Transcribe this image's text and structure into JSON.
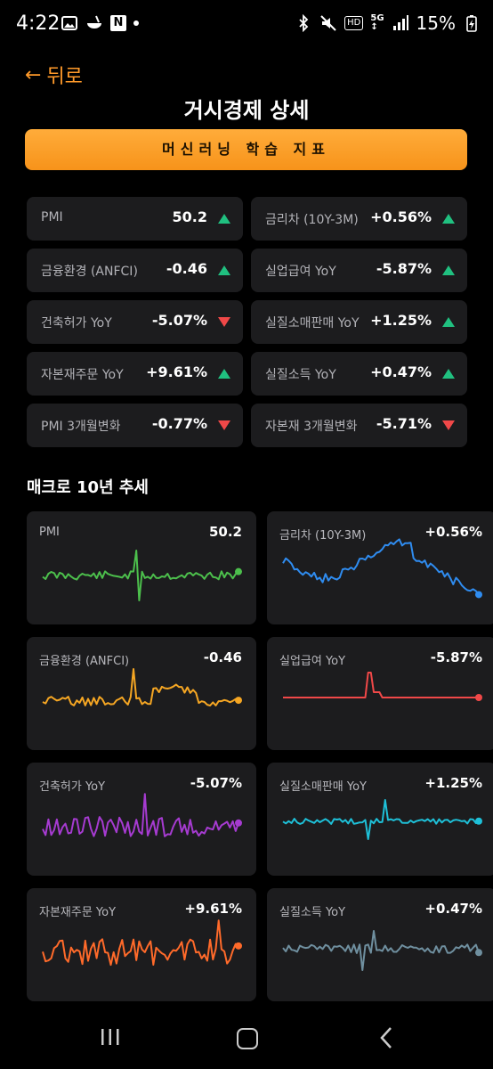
{
  "status_bar": {
    "time": "4:22",
    "battery": "15%"
  },
  "header": {
    "back_label": "뒤로",
    "title": "거시경제 상세",
    "ml_button": "머신러닝 학습 지표"
  },
  "metrics": [
    {
      "label": "PMI",
      "value": "50.2",
      "dir": "up"
    },
    {
      "label": "금리차 (10Y-3M)",
      "value": "+0.56%",
      "dir": "up"
    },
    {
      "label": "금융환경 (ANFCI)",
      "value": "-0.46",
      "dir": "up"
    },
    {
      "label": "실업급여 YoY",
      "value": "-5.87%",
      "dir": "up"
    },
    {
      "label": "건축허가 YoY",
      "value": "-5.07%",
      "dir": "down"
    },
    {
      "label": "실질소매판매 YoY",
      "value": "+1.25%",
      "dir": "up"
    },
    {
      "label": "자본재주문 YoY",
      "value": "+9.61%",
      "dir": "up"
    },
    {
      "label": "실질소득 YoY",
      "value": "+0.47%",
      "dir": "up"
    },
    {
      "label": "PMI 3개월변화",
      "value": "-0.77%",
      "dir": "down"
    },
    {
      "label": "자본재 3개월변화",
      "value": "-5.71%",
      "dir": "down"
    }
  ],
  "trend_section_title": "매크로 10년 추세",
  "trends": [
    {
      "label": "PMI",
      "value": "50.2",
      "color": "#4cbf4c"
    },
    {
      "label": "금리차 (10Y-3M)",
      "value": "+0.56%",
      "color": "#2f8cf0"
    },
    {
      "label": "금융환경 (ANFCI)",
      "value": "-0.46",
      "color": "#f5a623"
    },
    {
      "label": "실업급여 YoY",
      "value": "-5.87%",
      "color": "#f04848"
    },
    {
      "label": "건축허가 YoY",
      "value": "-5.07%",
      "color": "#a63bd1"
    },
    {
      "label": "실질소매판매 YoY",
      "value": "+1.25%",
      "color": "#1ec0d8"
    },
    {
      "label": "자본재주문 YoY",
      "value": "+9.61%",
      "color": "#ff6a2a"
    },
    {
      "label": "실질소득 YoY",
      "value": "+0.47%",
      "color": "#6f8f9f"
    }
  ]
}
